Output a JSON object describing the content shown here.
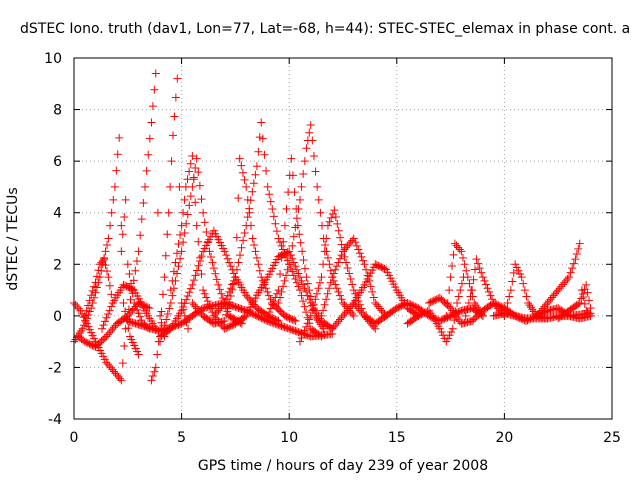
{
  "chart_data": {
    "type": "scatter",
    "title": "dSTEC Iono. truth (dav1, Lon=77, Lat=-68, h=44): STEC-STEC_elemax in phase cont. a",
    "xlabel": "GPS time / hours of day 239 of year 2008",
    "ylabel": "dSTEC  / TECUs",
    "xlim": [
      0,
      25
    ],
    "ylim": [
      -4,
      10
    ],
    "xticks": [
      0,
      5,
      10,
      15,
      20,
      25
    ],
    "yticks": [
      -4,
      -2,
      0,
      2,
      4,
      6,
      8,
      10
    ],
    "grid": true,
    "marker": "+",
    "series_color": "#ff0000",
    "series": [
      {
        "values": [
          [
            0.0,
            -1.0
          ],
          [
            0.4,
            -0.5
          ],
          [
            0.8,
            0.3
          ],
          [
            1.2,
            1.5
          ],
          [
            1.6,
            3.0
          ],
          [
            1.9,
            5.0
          ],
          [
            2.1,
            6.9
          ],
          [
            2.2,
            3.5
          ],
          [
            2.3,
            0.5
          ],
          [
            2.6,
            -0.8
          ],
          [
            3.0,
            -1.5
          ]
        ]
      },
      {
        "values": [
          [
            0.0,
            0.5
          ],
          [
            0.3,
            0.2
          ],
          [
            0.6,
            -0.3
          ],
          [
            1.0,
            -1.0
          ],
          [
            1.5,
            -1.8
          ],
          [
            2.0,
            -2.3
          ],
          [
            2.2,
            -2.5
          ],
          [
            2.4,
            -0.5
          ],
          [
            2.7,
            1.0
          ],
          [
            3.0,
            2.5
          ],
          [
            3.3,
            5.0
          ],
          [
            3.6,
            7.5
          ],
          [
            3.8,
            9.4
          ],
          [
            3.9,
            4.0
          ],
          [
            4.0,
            0.0
          ],
          [
            4.2,
            -0.8
          ]
        ]
      },
      {
        "values": [
          [
            2.2,
            2.5
          ],
          [
            2.4,
            4.5
          ],
          [
            2.5,
            2.0
          ],
          [
            2.8,
            0.5
          ],
          [
            3.2,
            -0.3
          ],
          [
            3.5,
            -0.5
          ]
        ]
      },
      {
        "values": [
          [
            1.3,
            -0.5
          ],
          [
            1.8,
            0.5
          ],
          [
            2.3,
            1.2
          ],
          [
            2.8,
            1.0
          ],
          [
            3.3,
            0.2
          ],
          [
            3.8,
            -0.5
          ]
        ]
      },
      {
        "values": [
          [
            3.6,
            -2.5
          ],
          [
            3.8,
            -2.0
          ],
          [
            4.0,
            -0.5
          ],
          [
            4.2,
            1.5
          ],
          [
            4.4,
            4.0
          ],
          [
            4.6,
            7.0
          ],
          [
            4.8,
            9.2
          ],
          [
            4.9,
            5.0
          ],
          [
            5.0,
            0.5
          ],
          [
            5.3,
            -0.5
          ]
        ]
      },
      {
        "values": [
          [
            4.0,
            -1.0
          ],
          [
            4.5,
            0.5
          ],
          [
            5.0,
            2.5
          ],
          [
            5.5,
            5.0
          ],
          [
            5.7,
            6.1
          ],
          [
            6.0,
            4.0
          ],
          [
            6.3,
            2.5
          ],
          [
            6.7,
            1.2
          ],
          [
            7.2,
            0.0
          ],
          [
            7.8,
            -0.3
          ]
        ]
      },
      {
        "values": [
          [
            4.5,
            1.0
          ],
          [
            5.0,
            3.5
          ],
          [
            5.2,
            5.0
          ],
          [
            5.5,
            6.2
          ],
          [
            5.7,
            3.5
          ],
          [
            6.0,
            1.0
          ],
          [
            6.5,
            0.0
          ],
          [
            7.0,
            -0.5
          ],
          [
            7.5,
            -0.3
          ]
        ]
      },
      {
        "values": [
          [
            4.0,
            -0.8
          ],
          [
            4.5,
            -0.5
          ],
          [
            5.0,
            0.2
          ],
          [
            5.5,
            1.2
          ],
          [
            6.0,
            2.5
          ],
          [
            6.5,
            3.3
          ],
          [
            7.0,
            2.5
          ],
          [
            7.5,
            1.5
          ],
          [
            8.0,
            0.8
          ],
          [
            8.5,
            0.3
          ],
          [
            9.0,
            0.0
          ],
          [
            9.5,
            -0.2
          ]
        ]
      },
      {
        "values": [
          [
            2.5,
            -0.2
          ],
          [
            4.0,
            -0.6
          ],
          [
            5.0,
            -0.3
          ],
          [
            6.0,
            0.3
          ],
          [
            7.0,
            0.5
          ],
          [
            8.0,
            0.2
          ],
          [
            9.0,
            -0.2
          ],
          [
            10.0,
            -0.5
          ],
          [
            11.0,
            -0.8
          ],
          [
            12.0,
            -0.7
          ]
        ]
      },
      {
        "values": [
          [
            5.5,
            0.5
          ],
          [
            6.0,
            0.0
          ],
          [
            6.5,
            -0.3
          ],
          [
            7.0,
            -0.2
          ],
          [
            7.5,
            1.5
          ],
          [
            7.7,
            6.1
          ],
          [
            8.0,
            5.0
          ],
          [
            8.3,
            3.0
          ],
          [
            8.7,
            1.5
          ],
          [
            9.2,
            0.5
          ],
          [
            9.8,
            0.0
          ],
          [
            10.3,
            -0.2
          ]
        ]
      },
      {
        "values": [
          [
            6.5,
            0.0
          ],
          [
            7.0,
            0.5
          ],
          [
            7.5,
            1.5
          ],
          [
            8.0,
            3.5
          ],
          [
            8.5,
            5.8
          ],
          [
            8.7,
            7.5
          ],
          [
            9.0,
            5.0
          ],
          [
            9.5,
            3.0
          ],
          [
            10.0,
            2.0
          ],
          [
            10.5,
            1.0
          ],
          [
            11.0,
            -0.5
          ],
          [
            11.5,
            -0.8
          ]
        ]
      },
      {
        "values": [
          [
            7.5,
            -0.3
          ],
          [
            8.0,
            0.0
          ],
          [
            8.5,
            0.8
          ],
          [
            9.0,
            1.5
          ],
          [
            9.5,
            2.3
          ],
          [
            10.0,
            2.5
          ],
          [
            10.5,
            1.5
          ],
          [
            11.0,
            0.5
          ],
          [
            11.5,
            -0.2
          ],
          [
            12.0,
            -0.5
          ]
        ]
      },
      {
        "values": [
          [
            9.0,
            0.0
          ],
          [
            9.5,
            1.0
          ],
          [
            9.8,
            3.5
          ],
          [
            10.1,
            6.1
          ],
          [
            10.4,
            3.5
          ],
          [
            10.8,
            1.5
          ],
          [
            11.2,
            0.0
          ],
          [
            11.6,
            -0.5
          ]
        ]
      },
      {
        "values": [
          [
            9.5,
            0.5
          ],
          [
            10.0,
            2.0
          ],
          [
            10.5,
            4.5
          ],
          [
            10.8,
            6.5
          ],
          [
            11.0,
            7.4
          ],
          [
            11.3,
            5.0
          ],
          [
            11.6,
            3.0
          ],
          [
            12.0,
            1.5
          ],
          [
            12.5,
            0.5
          ],
          [
            13.0,
            0.0
          ]
        ]
      },
      {
        "values": [
          [
            10.5,
            -1.0
          ],
          [
            11.0,
            0.0
          ],
          [
            11.5,
            1.5
          ],
          [
            11.8,
            3.5
          ],
          [
            12.1,
            4.1
          ],
          [
            12.5,
            2.5
          ],
          [
            13.0,
            1.0
          ],
          [
            13.5,
            0.0
          ],
          [
            14.0,
            -0.5
          ]
        ]
      },
      {
        "values": [
          [
            11.5,
            0.0
          ],
          [
            12.0,
            1.5
          ],
          [
            12.5,
            2.5
          ],
          [
            13.0,
            3.0
          ],
          [
            13.5,
            2.0
          ],
          [
            14.0,
            0.5
          ],
          [
            14.5,
            0.0
          ]
        ]
      },
      {
        "values": [
          [
            12.0,
            -0.5
          ],
          [
            13.0,
            0.5
          ],
          [
            13.5,
            1.2
          ],
          [
            14.0,
            2.0
          ],
          [
            14.5,
            1.8
          ],
          [
            15.0,
            1.0
          ],
          [
            15.5,
            0.3
          ],
          [
            16.0,
            0.0
          ]
        ]
      },
      {
        "values": [
          [
            13.0,
            0.5
          ],
          [
            13.5,
            0.0
          ],
          [
            14.0,
            -0.3
          ],
          [
            14.5,
            0.0
          ],
          [
            15.0,
            0.3
          ],
          [
            15.5,
            0.5
          ],
          [
            16.0,
            0.3
          ],
          [
            16.5,
            0.0
          ],
          [
            17.0,
            -0.2
          ],
          [
            17.5,
            0.0
          ],
          [
            18.0,
            0.2
          ],
          [
            18.5,
            0.3
          ],
          [
            19.0,
            0.0
          ]
        ]
      },
      {
        "values": [
          [
            15.5,
            -0.3
          ],
          [
            16.0,
            0.0
          ],
          [
            16.5,
            0.2
          ],
          [
            17.0,
            -0.5
          ],
          [
            17.3,
            -1.0
          ],
          [
            17.6,
            -0.5
          ],
          [
            17.8,
            0.5
          ],
          [
            18.1,
            1.5
          ]
        ]
      },
      {
        "values": [
          [
            17.3,
            0.0
          ],
          [
            17.5,
            1.5
          ],
          [
            17.7,
            2.8
          ],
          [
            18.0,
            2.5
          ],
          [
            18.3,
            1.5
          ],
          [
            18.6,
            0.5
          ],
          [
            19.0,
            0.0
          ]
        ]
      },
      {
        "values": [
          [
            18.2,
            0.0
          ],
          [
            18.5,
            1.0
          ],
          [
            18.7,
            2.2
          ],
          [
            19.0,
            1.5
          ],
          [
            19.5,
            0.5
          ],
          [
            20.0,
            0.0
          ]
        ]
      },
      {
        "values": [
          [
            16.5,
            0.5
          ],
          [
            17.0,
            0.7
          ],
          [
            17.5,
            0.3
          ],
          [
            18.0,
            -0.3
          ],
          [
            18.5,
            -0.2
          ],
          [
            19.0,
            0.2
          ],
          [
            19.5,
            0.5
          ],
          [
            20.0,
            0.3
          ],
          [
            20.5,
            0.0
          ],
          [
            21.0,
            -0.2
          ],
          [
            21.5,
            0.0
          ],
          [
            22.0,
            0.2
          ],
          [
            22.5,
            0.3
          ],
          [
            23.0,
            0.0
          ],
          [
            23.5,
            -0.1
          ],
          [
            24.0,
            0.0
          ]
        ]
      },
      {
        "values": [
          [
            20.0,
            0.0
          ],
          [
            20.3,
            1.0
          ],
          [
            20.5,
            2.0
          ],
          [
            20.8,
            1.5
          ],
          [
            21.1,
            0.5
          ],
          [
            21.5,
            0.0
          ],
          [
            22.0,
            -0.1
          ]
        ]
      },
      {
        "values": [
          [
            21.5,
            0.0
          ],
          [
            22.0,
            0.5
          ],
          [
            22.5,
            1.0
          ],
          [
            23.0,
            1.5
          ],
          [
            23.3,
            2.2
          ],
          [
            23.5,
            2.8
          ],
          [
            23.6,
            1.0
          ],
          [
            23.8,
            0.2
          ],
          [
            24.0,
            0.0
          ]
        ]
      },
      {
        "values": [
          [
            22.5,
            -0.1
          ],
          [
            23.0,
            0.2
          ],
          [
            23.5,
            0.5
          ],
          [
            23.8,
            1.2
          ],
          [
            24.0,
            0.3
          ]
        ]
      },
      {
        "values": [
          [
            19.5,
            0.0
          ],
          [
            20.0,
            0.1
          ],
          [
            21.0,
            -0.1
          ],
          [
            22.0,
            -0.1
          ],
          [
            22.5,
            0.0
          ],
          [
            23.0,
            0.0
          ],
          [
            24.0,
            0.1
          ]
        ]
      },
      {
        "values": [
          [
            0.2,
            -0.8
          ],
          [
            0.5,
            -1.0
          ],
          [
            1.0,
            -1.2
          ],
          [
            1.5,
            -0.8
          ],
          [
            2.0,
            -0.3
          ],
          [
            2.5,
            0.0
          ],
          [
            3.0,
            0.5
          ],
          [
            3.5,
            0.3
          ]
        ]
      },
      {
        "values": [
          [
            0.5,
            0.0
          ],
          [
            0.8,
            0.8
          ],
          [
            1.0,
            1.3
          ],
          [
            1.2,
            2.0
          ],
          [
            1.4,
            2.2
          ],
          [
            1.6,
            1.5
          ],
          [
            1.8,
            0.5
          ]
        ]
      }
    ]
  }
}
